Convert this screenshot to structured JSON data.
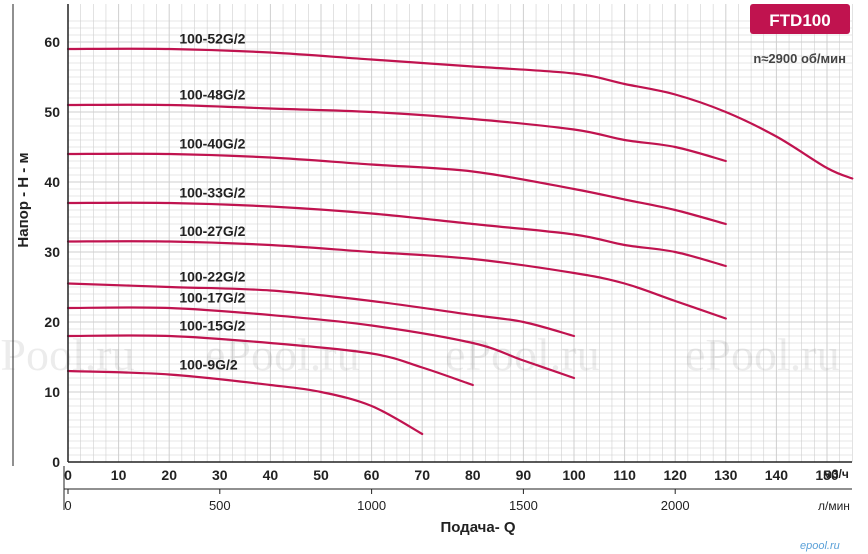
{
  "chart_data": {
    "type": "line",
    "title": "FTD100",
    "subtitle": "n≈2900 об/мин",
    "xlabel": "Подача- Q",
    "ylabel": "Напор - H - м",
    "x_unit": "м3/ч",
    "x2_unit": "л/мин",
    "xlim": [
      0,
      155
    ],
    "ylim": [
      0,
      63
    ],
    "x_ticks": [
      0,
      10,
      20,
      30,
      40,
      50,
      60,
      70,
      80,
      90,
      100,
      110,
      120,
      130,
      140,
      150
    ],
    "x2_ticks": [
      0,
      500,
      1000,
      1500,
      2000
    ],
    "y_ticks": [
      0,
      10,
      20,
      30,
      40,
      50,
      60
    ],
    "grid": true,
    "series": [
      {
        "name": "100-52G/2",
        "x": [
          0,
          20,
          40,
          60,
          80,
          100,
          110,
          120,
          130,
          140,
          150,
          155
        ],
        "y": [
          59,
          59,
          58.5,
          57.5,
          56.5,
          55.5,
          54,
          52.5,
          50,
          46.5,
          42,
          40.5
        ]
      },
      {
        "name": "100-48G/2",
        "x": [
          0,
          20,
          40,
          60,
          80,
          100,
          110,
          120,
          130
        ],
        "y": [
          51,
          51,
          50.5,
          50,
          49,
          47.5,
          46,
          45,
          43
        ]
      },
      {
        "name": "100-40G/2",
        "x": [
          0,
          20,
          40,
          60,
          80,
          100,
          110,
          120,
          130
        ],
        "y": [
          44,
          44,
          43.5,
          42.5,
          41.5,
          39,
          37.5,
          36,
          34
        ]
      },
      {
        "name": "100-33G/2",
        "x": [
          0,
          20,
          40,
          60,
          80,
          100,
          110,
          120,
          130
        ],
        "y": [
          37,
          37,
          36.5,
          35.5,
          34,
          32.5,
          31,
          30,
          28
        ]
      },
      {
        "name": "100-27G/2",
        "x": [
          0,
          20,
          40,
          60,
          80,
          100,
          110,
          120,
          130
        ],
        "y": [
          31.5,
          31.5,
          31,
          30,
          29,
          27,
          25.5,
          23,
          20.5
        ]
      },
      {
        "name": "100-22G/2",
        "x": [
          0,
          20,
          40,
          60,
          80,
          90,
          100
        ],
        "y": [
          25.5,
          25,
          24.5,
          23,
          21,
          20,
          18
        ]
      },
      {
        "name": "100-17G/2",
        "x": [
          0,
          20,
          40,
          60,
          80,
          90,
          100
        ],
        "y": [
          22,
          22,
          21,
          19.5,
          17,
          14.5,
          12
        ]
      },
      {
        "name": "100-15G/2",
        "x": [
          0,
          20,
          40,
          60,
          70,
          80
        ],
        "y": [
          18,
          18,
          17,
          15.5,
          13.5,
          11
        ]
      },
      {
        "name": "100-9G/2",
        "x": [
          0,
          20,
          40,
          50,
          60,
          70
        ],
        "y": [
          13,
          12.5,
          11,
          10,
          8,
          4
        ]
      }
    ]
  },
  "watermark": {
    "text": "ePool.ru"
  },
  "footer": {
    "logo": "epool.ru"
  },
  "colors": {
    "curve": "#c0134f",
    "badge": "#c0134f",
    "grid": "#cfcfcf",
    "axis": "#222222"
  }
}
